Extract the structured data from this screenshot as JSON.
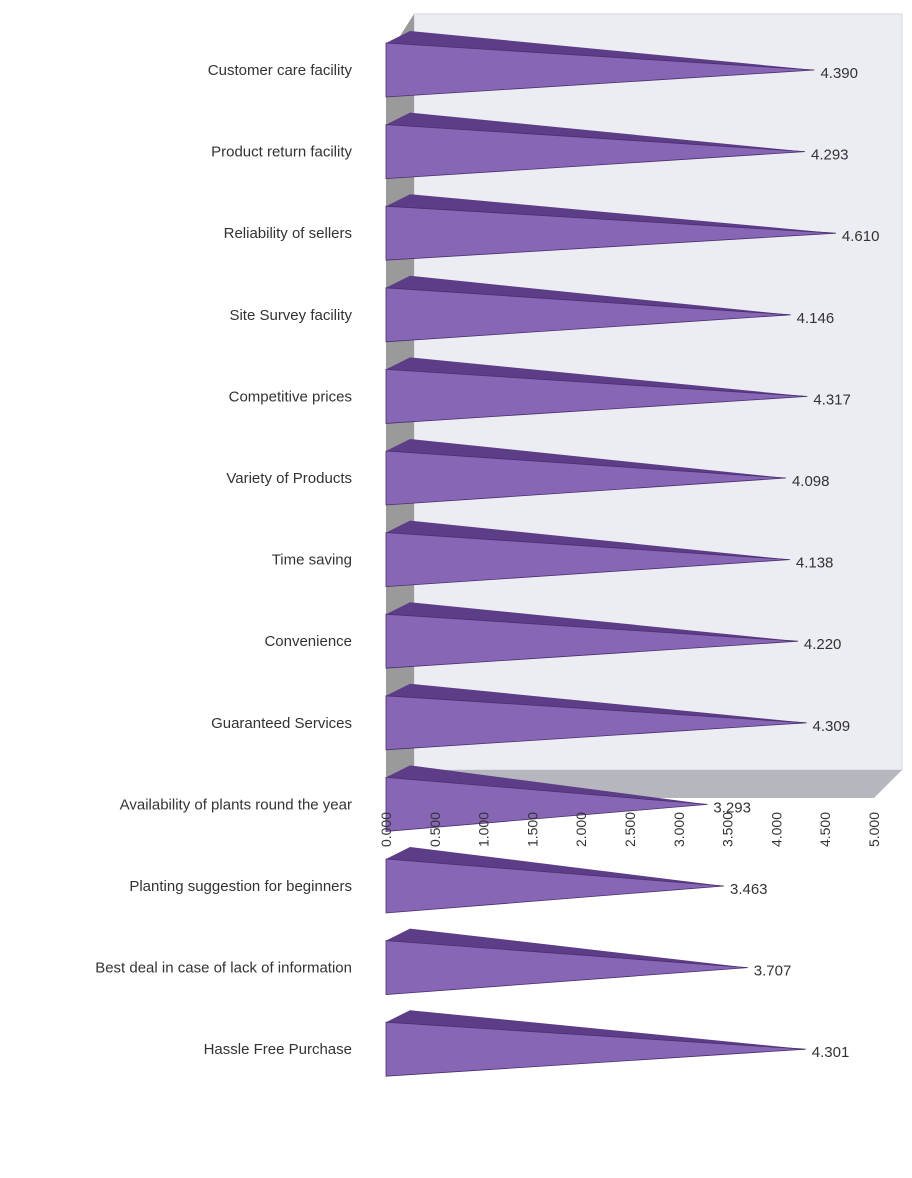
{
  "chart_data": {
    "type": "bar",
    "orientation": "horizontal",
    "style": "3d-cone",
    "categories": [
      "Customer care facility",
      "Product return facility",
      "Reliability of sellers",
      "Site Survey facility",
      "Competitive prices",
      "Variety of Products",
      "Time saving",
      "Convenience",
      "Guaranteed Services",
      "Availability of plants round the year",
      "Planting suggestion for  beginners",
      "Best deal in case of lack of information",
      "Hassle Free Purchase"
    ],
    "values": [
      4.39,
      4.293,
      4.61,
      4.146,
      4.317,
      4.098,
      4.138,
      4.22,
      4.309,
      3.293,
      3.463,
      3.707,
      4.301
    ],
    "value_labels": [
      "4.390",
      "4.293",
      "4.610",
      "4.146",
      "4.317",
      "4.098",
      "4.138",
      "4.220",
      "4.309",
      "3.293",
      "3.463",
      "3.707",
      "4.301"
    ],
    "xlim": [
      0,
      5
    ],
    "xticks": [
      "0.000",
      "0.500",
      "1.000",
      "1.500",
      "2.000",
      "2.500",
      "3.000",
      "3.500",
      "4.000",
      "4.500",
      "5.000"
    ],
    "title": "",
    "xlabel": "",
    "ylabel": "",
    "grid": false,
    "legend": "none",
    "colors": {
      "bar_front": "#8866b6",
      "bar_top": "#5d3d88",
      "bar_edge": "#4a2f6e",
      "back_wall": "#ececf3",
      "side_wall": "#9a9a9a",
      "floor": "#b6b6be",
      "text": "#333333"
    }
  }
}
